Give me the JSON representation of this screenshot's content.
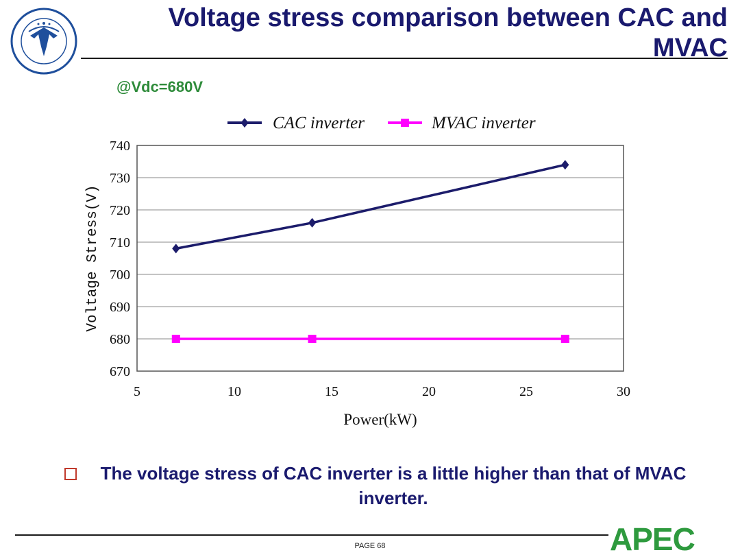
{
  "slide": {
    "title": "Voltage stress comparison between CAC and MVAC",
    "condition": "@Vdc=680V",
    "bullet": "The voltage stress of CAC inverter is a little higher than that of MVAC inverter.",
    "page_number": "PAGE 68",
    "logo_text": "APEC",
    "colors": {
      "title": "#1a1a6e",
      "condition": "#2e8b3a",
      "bullet_box": "#c0392b",
      "apec": "#2e9a3e"
    }
  },
  "chart_data": {
    "type": "line",
    "title": "",
    "xlabel": "Power(kW)",
    "ylabel": "Voltage Stress(V)",
    "xlim": [
      5,
      30
    ],
    "ylim": [
      670,
      740
    ],
    "xticks": [
      5,
      10,
      15,
      20,
      25,
      30
    ],
    "yticks": [
      670,
      680,
      690,
      700,
      710,
      720,
      730,
      740
    ],
    "grid": "horizontal",
    "legend_position": "top-center",
    "series": [
      {
        "name": "CAC inverter",
        "color": "#1c1c6b",
        "marker": "diamond",
        "x": [
          7,
          14,
          27
        ],
        "y": [
          708,
          716,
          734
        ]
      },
      {
        "name": "MVAC inverter",
        "color": "#ff00ff",
        "marker": "square",
        "x": [
          7,
          14,
          27
        ],
        "y": [
          680,
          680,
          680
        ]
      }
    ]
  }
}
